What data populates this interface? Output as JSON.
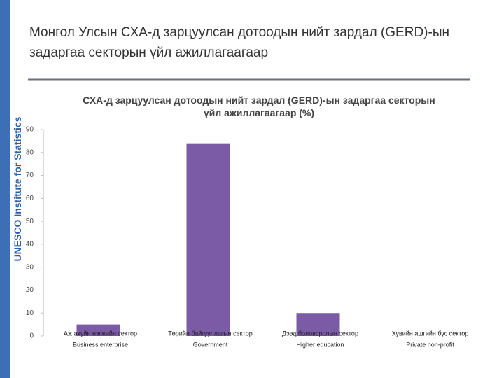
{
  "side_label": "UNESCO Institute for Statistics",
  "slide_title": "Монгол Улсын СХА-д зарцуулсан дотоодын нийт зардал (GERD)-ын задаргаа секторын үйл ажиллагаагаар",
  "chart_data": {
    "type": "bar",
    "title": "СХА-д зарцуулсан дотоодын нийт зардал (GERD)-ын задаргаа секторын үйл ажиллагаагаар (%)",
    "categories": [
      "Аж ахуйн нэгжийн сектор",
      "Төрийн байгууллагын сектор",
      "Дээд боловсролын сектор",
      "Хувийн ашгийн бус сектор"
    ],
    "categories_en": [
      "Business enterprise",
      "Government",
      "Higher education",
      "Private non-profit"
    ],
    "values": [
      5,
      84,
      10,
      0
    ],
    "color": "#7b5ba6",
    "ylim": [
      0,
      90
    ],
    "yticks": [
      0,
      10,
      20,
      30,
      40,
      50,
      60,
      70,
      80,
      90
    ],
    "grid": false
  }
}
